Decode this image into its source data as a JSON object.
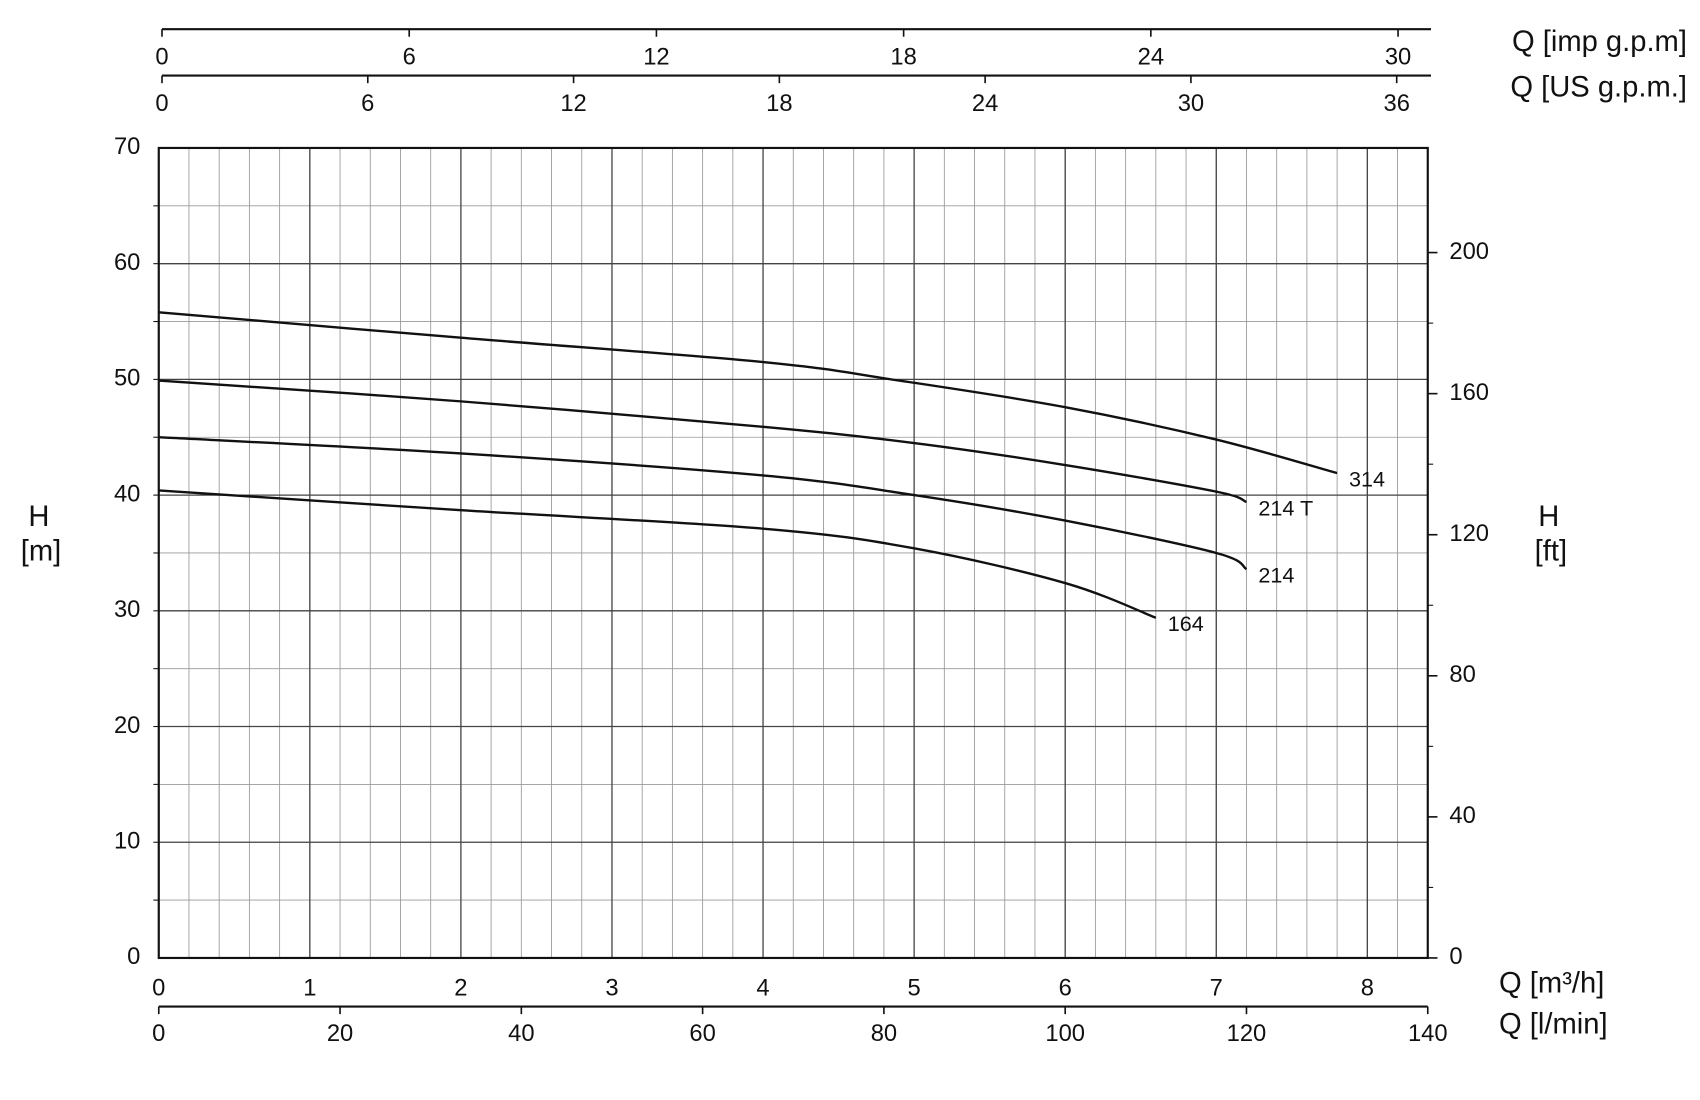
{
  "chart_data": {
    "type": "line",
    "x_label": "Q [m³/h]",
    "y_label": "H",
    "y_unit": "[m]",
    "y2_label": "H",
    "y2_unit": "[ft]",
    "xlim": [
      0,
      8.4
    ],
    "xticks": [
      0,
      1,
      2,
      3,
      4,
      5,
      6,
      7,
      8
    ],
    "ylim": [
      0,
      70
    ],
    "yticks": [
      0,
      10,
      20,
      30,
      40,
      50,
      60,
      70
    ],
    "y2lim": [
      0,
      229.66
    ],
    "y2ticks": [
      0,
      40,
      80,
      120,
      160,
      200
    ],
    "grid": true,
    "minor_grid_step": {
      "x": 0.2,
      "y": 5
    },
    "secondary_x_axes": [
      {
        "label": "Q [l/min]",
        "position": "bottom",
        "lim": [
          0,
          140
        ],
        "ticks": [
          0,
          20,
          40,
          60,
          80,
          100,
          120,
          140
        ]
      },
      {
        "label": "Q [US g.p.m.]",
        "position": "top",
        "lim": [
          0,
          37.0
        ],
        "ticks": [
          0,
          6,
          12,
          18,
          24,
          30,
          36
        ]
      },
      {
        "label": "Q [imp g.p.m]",
        "position": "top",
        "lim": [
          0,
          30.8
        ],
        "ticks": [
          0,
          6,
          12,
          18,
          24,
          30
        ]
      }
    ],
    "series": [
      {
        "name": "314",
        "color": "#111111",
        "x": [
          0,
          2,
          4,
          4.9,
          6,
          7,
          7.8
        ],
        "values": [
          55.8,
          53.6,
          51.5,
          49.9,
          47.6,
          44.8,
          41.9
        ]
      },
      {
        "name": "214 T",
        "color": "#111111",
        "x": [
          0,
          2,
          4,
          5,
          6,
          7,
          7.2
        ],
        "values": [
          49.9,
          48.1,
          45.9,
          44.5,
          42.6,
          40.3,
          39.4
        ]
      },
      {
        "name": "214",
        "color": "#111111",
        "x": [
          0,
          2,
          4,
          5,
          6,
          7,
          7.2
        ],
        "values": [
          45.0,
          43.6,
          41.7,
          40.0,
          37.8,
          35.0,
          33.6
        ]
      },
      {
        "name": "164",
        "color": "#111111",
        "x": [
          0,
          2,
          4,
          5,
          6,
          6.6
        ],
        "values": [
          40.4,
          38.7,
          37.1,
          35.4,
          32.4,
          29.4
        ]
      }
    ]
  }
}
